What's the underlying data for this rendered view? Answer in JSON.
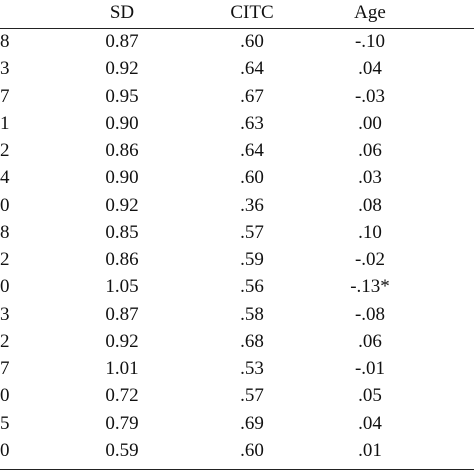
{
  "table": {
    "headers": [
      "",
      "SD",
      "CITC",
      "Age"
    ],
    "rows": [
      [
        "8",
        "0.87",
        ".60",
        "-.10"
      ],
      [
        "3",
        "0.92",
        ".64",
        ".04"
      ],
      [
        "7",
        "0.95",
        ".67",
        "-.03"
      ],
      [
        "1",
        "0.90",
        ".63",
        ".00"
      ],
      [
        "2",
        "0.86",
        ".64",
        ".06"
      ],
      [
        "4",
        "0.90",
        ".60",
        ".03"
      ],
      [
        "0",
        "0.92",
        ".36",
        ".08"
      ],
      [
        "8",
        "0.85",
        ".57",
        ".10"
      ],
      [
        "2",
        "0.86",
        ".59",
        "-.02"
      ],
      [
        "0",
        "1.05",
        ".56",
        "-.13*"
      ],
      [
        "3",
        "0.87",
        ".58",
        "-.08"
      ],
      [
        "2",
        "0.92",
        ".68",
        ".06"
      ],
      [
        "7",
        "1.01",
        ".53",
        "-.01"
      ],
      [
        "0",
        "0.72",
        ".57",
        ".05"
      ],
      [
        "5",
        "0.79",
        ".69",
        ".04"
      ],
      [
        "0",
        "0.59",
        ".60",
        ".01"
      ]
    ]
  }
}
